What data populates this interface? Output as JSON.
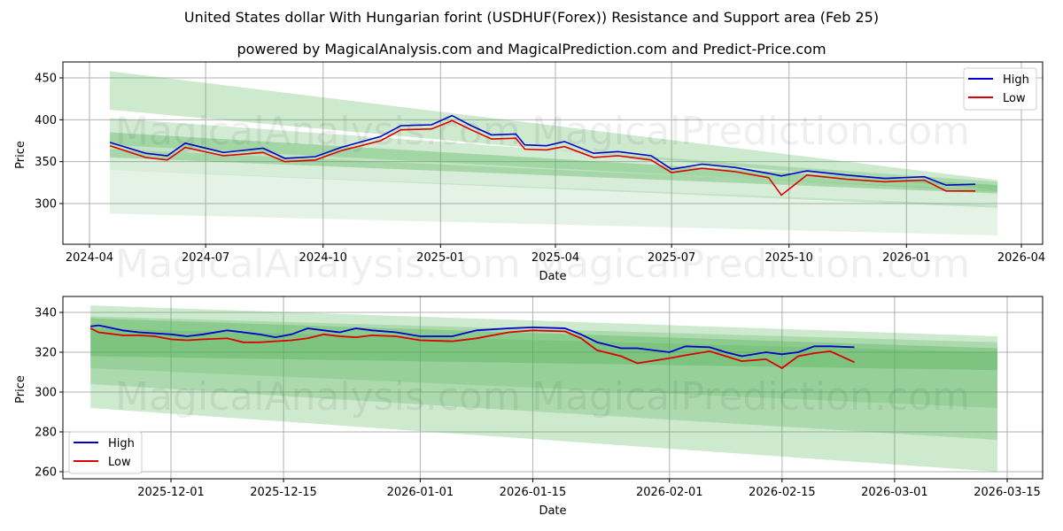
{
  "header": {
    "title": "United States dollar With Hungarian forint (USDHUF(Forex)) Resistance and Support area (Feb 25)",
    "subtitle": "powered by MagicalAnalysis.com and MagicalPrediction.com and Predict-Price.com"
  },
  "watermarks": [
    "MagicalAnalysis.com",
    "MagicalPrediction.com"
  ],
  "colors": {
    "high": "#0000cc",
    "low": "#dd0000",
    "band": "#4caf50",
    "grid": "#b0b0b0"
  },
  "chart_data": [
    {
      "type": "line",
      "title": "USDHUF long-term with resistance/support bands",
      "xlabel": "Date",
      "ylabel": "Price",
      "x_ticks": [
        "2024-04",
        "2024-07",
        "2024-10",
        "2025-01",
        "2025-04",
        "2025-07",
        "2025-10",
        "2026-01",
        "2026-04"
      ],
      "y_ticks": [
        300,
        350,
        400,
        450
      ],
      "ylim": [
        250,
        470
      ],
      "grid": true,
      "legend": {
        "position": "upper right",
        "entries": [
          "High",
          "Low"
        ]
      },
      "x": [
        "2024-04-17",
        "2024-05-15",
        "2024-06-01",
        "2024-06-15",
        "2024-07-15",
        "2024-08-15",
        "2024-09-01",
        "2024-09-25",
        "2024-10-15",
        "2024-11-15",
        "2024-12-01",
        "2024-12-25",
        "2025-01-10",
        "2025-01-25",
        "2025-02-10",
        "2025-03-01",
        "2025-03-08",
        "2025-03-25",
        "2025-04-08",
        "2025-05-01",
        "2025-05-20",
        "2025-06-15",
        "2025-07-01",
        "2025-07-25",
        "2025-08-20",
        "2025-09-15",
        "2025-09-25",
        "2025-10-15",
        "2025-11-15",
        "2025-12-15",
        "2026-01-15",
        "2026-02-01",
        "2026-02-24"
      ],
      "series": [
        {
          "name": "High",
          "values": [
            373,
            360,
            357,
            372,
            361,
            366,
            354,
            356,
            367,
            380,
            393,
            394,
            405,
            393,
            382,
            383,
            370,
            369,
            374,
            360,
            362,
            357,
            341,
            347,
            343,
            336,
            333,
            339,
            334,
            330,
            332,
            322,
            323
          ]
        },
        {
          "name": "Low",
          "values": [
            369,
            355,
            352,
            367,
            357,
            361,
            350,
            352,
            363,
            375,
            388,
            389,
            399,
            388,
            377,
            378,
            365,
            364,
            368,
            355,
            357,
            352,
            337,
            342,
            338,
            331,
            310,
            334,
            329,
            326,
            328,
            315,
            315
          ]
        }
      ],
      "bands": [
        {
          "name": "outer-resistance",
          "start": [
            458,
            412
          ],
          "end": [
            328,
            316
          ]
        },
        {
          "name": "mid-band",
          "start": [
            402,
            370
          ],
          "end": [
            326,
            314
          ]
        },
        {
          "name": "core-band",
          "start": [
            385,
            355
          ],
          "end": [
            322,
            312
          ]
        },
        {
          "name": "inner-support",
          "start": [
            365,
            340
          ],
          "end": [
            316,
            295
          ]
        },
        {
          "name": "outer-support",
          "start": [
            340,
            288
          ],
          "end": [
            298,
            262
          ]
        }
      ]
    },
    {
      "type": "line",
      "title": "USDHUF recent detail with resistance/support bands",
      "xlabel": "Date",
      "ylabel": "Price",
      "x_ticks": [
        "2025-12-01",
        "2025-12-15",
        "2026-01-01",
        "2026-01-15",
        "2026-02-01",
        "2026-02-15",
        "2026-03-01",
        "2026-03-15"
      ],
      "y_ticks": [
        260,
        280,
        300,
        320,
        340
      ],
      "ylim": [
        256,
        348
      ],
      "grid": true,
      "legend": {
        "position": "lower left",
        "entries": [
          "High",
          "Low"
        ]
      },
      "x": [
        "2025-11-21",
        "2025-11-22",
        "2025-11-25",
        "2025-11-27",
        "2025-11-29",
        "2025-12-01",
        "2025-12-03",
        "2025-12-05",
        "2025-12-08",
        "2025-12-10",
        "2025-12-12",
        "2025-12-14",
        "2025-12-16",
        "2025-12-18",
        "2025-12-20",
        "2025-12-22",
        "2025-12-24",
        "2025-12-26",
        "2025-12-29",
        "2026-01-01",
        "2026-01-05",
        "2026-01-08",
        "2026-01-12",
        "2026-01-15",
        "2026-01-19",
        "2026-01-21",
        "2026-01-23",
        "2026-01-26",
        "2026-01-28",
        "2026-02-01",
        "2026-02-03",
        "2026-02-06",
        "2026-02-08",
        "2026-02-10",
        "2026-02-13",
        "2026-02-15",
        "2026-02-17",
        "2026-02-19",
        "2026-02-21",
        "2026-02-24"
      ],
      "series": [
        {
          "name": "High",
          "values": [
            333,
            333.5,
            331,
            330,
            329.5,
            329,
            328,
            329,
            331,
            330,
            329,
            327.5,
            329,
            332,
            331,
            330,
            332,
            331,
            330,
            328,
            328,
            331,
            332,
            332.5,
            332,
            329,
            325,
            322,
            322,
            320,
            323,
            322.5,
            320,
            318,
            320,
            319,
            320,
            323,
            323,
            322.5
          ]
        },
        {
          "name": "Low",
          "values": [
            332,
            330,
            328.5,
            328.5,
            328,
            326.5,
            326,
            326.5,
            327,
            325,
            325,
            325.5,
            326,
            327,
            329,
            328,
            327.5,
            328.5,
            328,
            326,
            325.5,
            327,
            330,
            331,
            330.5,
            327,
            321,
            318,
            314.5,
            317,
            318.5,
            320.5,
            318,
            315.5,
            316.5,
            312,
            318,
            319.5,
            320.5,
            315
          ]
        }
      ],
      "bands": [
        {
          "name": "outer-resistance",
          "start": [
            343.5,
            292
          ],
          "end": [
            328,
            260
          ]
        },
        {
          "name": "mid-band",
          "start": [
            338,
            304
          ],
          "end": [
            325,
            276
          ]
        },
        {
          "name": "core-band",
          "start": [
            337,
            318
          ],
          "end": [
            322,
            311
          ]
        },
        {
          "name": "inner-support",
          "start": [
            332,
            312
          ],
          "end": [
            320,
            292
          ]
        }
      ]
    }
  ]
}
